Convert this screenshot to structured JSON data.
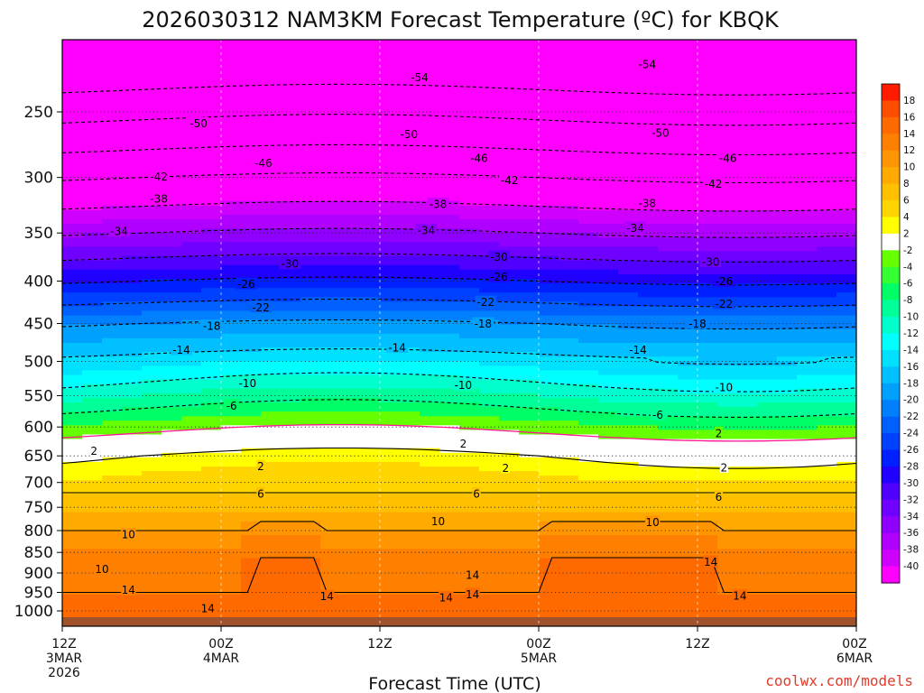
{
  "title": "2026030312 NAM3KM Forecast Temperature (ºC) for KBQK",
  "credit": "coolwx.com/models",
  "chart_data": {
    "type": "heatmap",
    "title": "2026030312 NAM3KM Forecast Temperature (ºC) for KBQK",
    "xlabel": "Forecast Time (UTC)",
    "ylabel": "",
    "y_scale": "log",
    "y_reversed": true,
    "ylim": [
      1040,
      200
    ],
    "xlim": [
      0,
      60
    ],
    "x_unit": "forecast hour",
    "y_ticks": [
      250,
      300,
      350,
      400,
      450,
      500,
      550,
      600,
      650,
      700,
      750,
      800,
      850,
      900,
      950,
      1000
    ],
    "x_ticks": [
      {
        "x": 0,
        "lines": [
          "12Z",
          "3MAR",
          "2026"
        ]
      },
      {
        "x": 12,
        "lines": [
          "00Z",
          "4MAR"
        ]
      },
      {
        "x": 24,
        "lines": [
          "12Z"
        ]
      },
      {
        "x": 36,
        "lines": [
          "00Z",
          "5MAR"
        ]
      },
      {
        "x": 48,
        "lines": [
          "12Z"
        ]
      },
      {
        "x": 60,
        "lines": [
          "00Z",
          "6MAR"
        ]
      }
    ],
    "grid": true,
    "colorbar": {
      "levels": [
        18,
        16,
        14,
        12,
        10,
        8,
        6,
        4,
        2,
        -2,
        -4,
        -6,
        -8,
        -10,
        -12,
        -14,
        -16,
        -18,
        -20,
        -22,
        -24,
        -26,
        -28,
        -30,
        -32,
        -34,
        -36,
        -38,
        -40
      ],
      "colors": [
        "#ff1a00",
        "#ff4d00",
        "#ff6a00",
        "#ff8000",
        "#ff9500",
        "#ffaa00",
        "#ffc000",
        "#ffd500",
        "#ffff00",
        "#ffffff",
        "#66ff00",
        "#33ff33",
        "#00ff66",
        "#00ff99",
        "#00ffcc",
        "#00ffff",
        "#00e0ff",
        "#00c0ff",
        "#00a0ff",
        "#0080ff",
        "#0060ff",
        "#0040ff",
        "#0020ff",
        "#2000ff",
        "#5000ff",
        "#7000ff",
        "#9000ff",
        "#b000ff",
        "#d000ff",
        "#ff00ff"
      ]
    },
    "isotherm_labels": [
      {
        "x": 27.0,
        "p": 227,
        "text": "-54"
      },
      {
        "x": 44.2,
        "p": 219,
        "text": "-54"
      },
      {
        "x": 10.3,
        "p": 258,
        "text": "-50"
      },
      {
        "x": 26.2,
        "p": 266,
        "text": "-50"
      },
      {
        "x": 45.2,
        "p": 265,
        "text": "-50"
      },
      {
        "x": 15.2,
        "p": 288,
        "text": "-46"
      },
      {
        "x": 31.5,
        "p": 284,
        "text": "-46"
      },
      {
        "x": 50.3,
        "p": 284,
        "text": "-46"
      },
      {
        "x": 7.3,
        "p": 299,
        "text": "-42"
      },
      {
        "x": 33.8,
        "p": 302,
        "text": "-42"
      },
      {
        "x": 49.2,
        "p": 305,
        "text": "-42"
      },
      {
        "x": 7.3,
        "p": 318,
        "text": "-38"
      },
      {
        "x": 28.4,
        "p": 323,
        "text": "-38"
      },
      {
        "x": 44.2,
        "p": 322,
        "text": "-38"
      },
      {
        "x": 4.3,
        "p": 348,
        "text": "-34"
      },
      {
        "x": 27.5,
        "p": 347,
        "text": "-34"
      },
      {
        "x": 43.3,
        "p": 345,
        "text": "-34"
      },
      {
        "x": 17.2,
        "p": 381,
        "text": "-30"
      },
      {
        "x": 33.0,
        "p": 374,
        "text": "-30"
      },
      {
        "x": 49.0,
        "p": 379,
        "text": "-30"
      },
      {
        "x": 13.9,
        "p": 403,
        "text": "-26"
      },
      {
        "x": 33.0,
        "p": 395,
        "text": "-26"
      },
      {
        "x": 50.0,
        "p": 400,
        "text": "-26"
      },
      {
        "x": 15.0,
        "p": 430,
        "text": "-22"
      },
      {
        "x": 32.0,
        "p": 424,
        "text": "-22"
      },
      {
        "x": 50.0,
        "p": 426,
        "text": "-22"
      },
      {
        "x": 11.3,
        "p": 453,
        "text": "-18"
      },
      {
        "x": 31.8,
        "p": 450,
        "text": "-18"
      },
      {
        "x": 48.0,
        "p": 450,
        "text": "-18"
      },
      {
        "x": 9.0,
        "p": 484,
        "text": "-14"
      },
      {
        "x": 25.3,
        "p": 481,
        "text": "-14"
      },
      {
        "x": 43.5,
        "p": 484,
        "text": "-14"
      },
      {
        "x": 14.0,
        "p": 531,
        "text": "-10"
      },
      {
        "x": 30.3,
        "p": 534,
        "text": "-10"
      },
      {
        "x": 50.0,
        "p": 537,
        "text": "-10"
      },
      {
        "x": 12.8,
        "p": 565,
        "text": "-6"
      },
      {
        "x": 45.0,
        "p": 580,
        "text": "-6"
      },
      {
        "x": 2.4,
        "p": 641,
        "text": "2"
      },
      {
        "x": 30.3,
        "p": 628,
        "text": "2"
      },
      {
        "x": 49.6,
        "p": 610,
        "text": "2"
      },
      {
        "x": 15.0,
        "p": 669,
        "text": "2"
      },
      {
        "x": 33.5,
        "p": 672,
        "text": "2"
      },
      {
        "x": 50.0,
        "p": 671,
        "text": "2"
      },
      {
        "x": 15.0,
        "p": 722,
        "text": "6"
      },
      {
        "x": 31.3,
        "p": 722,
        "text": "6"
      },
      {
        "x": 49.6,
        "p": 728,
        "text": "6"
      },
      {
        "x": 28.4,
        "p": 779,
        "text": "10"
      },
      {
        "x": 44.6,
        "p": 781,
        "text": "10"
      },
      {
        "x": 5.0,
        "p": 808,
        "text": "10"
      },
      {
        "x": 3.0,
        "p": 890,
        "text": "10"
      },
      {
        "x": 5.0,
        "p": 943,
        "text": "14"
      },
      {
        "x": 31.0,
        "p": 905,
        "text": "14"
      },
      {
        "x": 49.0,
        "p": 872,
        "text": "14"
      },
      {
        "x": 20.0,
        "p": 960,
        "text": "14"
      },
      {
        "x": 29.0,
        "p": 963,
        "text": "14"
      },
      {
        "x": 31.0,
        "p": 955,
        "text": "14"
      },
      {
        "x": 51.2,
        "p": 958,
        "text": "14"
      },
      {
        "x": 11.0,
        "p": 992,
        "text": "14"
      }
    ]
  }
}
